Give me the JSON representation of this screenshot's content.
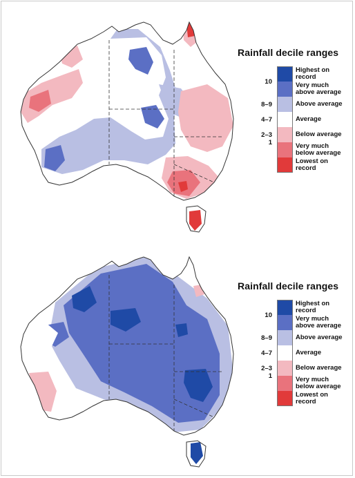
{
  "legend": {
    "title": "Rainfall decile ranges",
    "items": [
      {
        "decile": "",
        "label_1": "Highest on",
        "label_2": "record",
        "color": "#1f4aa6"
      },
      {
        "decile": "10",
        "label_1": "Very much",
        "label_2": "above average",
        "color": "#5b6fc4"
      },
      {
        "decile": "8–9",
        "label_1": "Above average",
        "label_2": "",
        "color": "#b9bfe3"
      },
      {
        "decile": "4–7",
        "label_1": "Average",
        "label_2": "",
        "color": "#ffffff"
      },
      {
        "decile": "2–3",
        "label_1": "Below average",
        "label_2": "",
        "color": "#f3b9c0"
      },
      {
        "decile": "1",
        "label_1": "Very much",
        "label_2": "below average",
        "color": "#e9737c"
      },
      {
        "decile": "",
        "label_1": "Lowest on",
        "label_2": "record",
        "color": "#e13a3a"
      }
    ]
  },
  "maps": [
    {
      "id": "top",
      "dominant_tone": "mixed"
    },
    {
      "id": "bottom",
      "dominant_tone": "wet"
    }
  ]
}
